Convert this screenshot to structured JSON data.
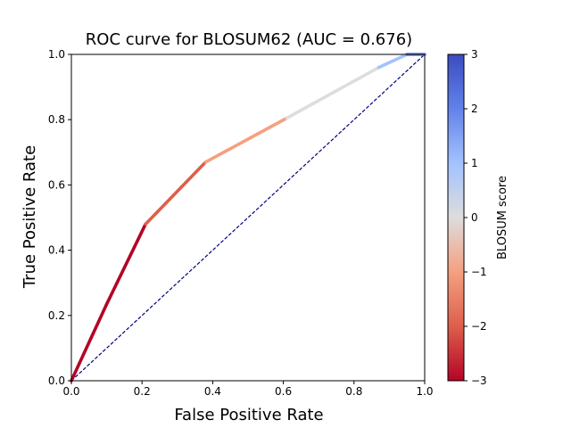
{
  "chart_data": {
    "type": "line",
    "title": "ROC curve for BLOSUM62 (AUC = 0.676)",
    "xlabel": "False Positive Rate",
    "ylabel": "True Positive Rate",
    "xlim": [
      0,
      1
    ],
    "ylim": [
      0,
      1
    ],
    "x_ticks": [
      0.0,
      0.2,
      0.4,
      0.6,
      0.8,
      1.0
    ],
    "x_tick_labels": [
      "0.0",
      "0.2",
      "0.4",
      "0.6",
      "0.8",
      "1.0"
    ],
    "y_ticks": [
      0.0,
      0.2,
      0.4,
      0.6,
      0.8,
      1.0
    ],
    "y_tick_labels": [
      "0.0",
      "0.2",
      "0.4",
      "0.6",
      "0.8",
      "1.0"
    ],
    "grid": false,
    "series": [
      {
        "points": [
          {
            "x": 0.0,
            "y": 0.0,
            "score": -3
          },
          {
            "x": 0.1,
            "y": 0.235,
            "score": -3
          },
          {
            "x": 0.21,
            "y": 0.48,
            "score": -3
          },
          {
            "x": 0.38,
            "y": 0.67,
            "score": -2
          },
          {
            "x": 0.61,
            "y": 0.805,
            "score": -1
          },
          {
            "x": 0.87,
            "y": 0.96,
            "score": 0
          },
          {
            "x": 0.95,
            "y": 1.0,
            "score": 1
          },
          {
            "x": 1.0,
            "y": 1.0,
            "score": 2
          }
        ]
      }
    ],
    "reference_line": {
      "style": "dashed",
      "color": "#000080",
      "from": [
        0,
        0
      ],
      "to": [
        1,
        1
      ]
    },
    "colorbar": {
      "label": "BLOSUM score",
      "colormap": "coolwarm",
      "range": [
        -3,
        3
      ],
      "ticks": [
        -3,
        -2,
        -1,
        0,
        1,
        2,
        3
      ],
      "tick_labels": [
        "−3",
        "−2",
        "−1",
        "0",
        "1",
        "2",
        "3"
      ],
      "colors": [
        "#b40426",
        "#dd5f4b",
        "#f5a081",
        "#dddddd",
        "#a3c2fe",
        "#6282ea",
        "#3b4cc0"
      ]
    }
  }
}
